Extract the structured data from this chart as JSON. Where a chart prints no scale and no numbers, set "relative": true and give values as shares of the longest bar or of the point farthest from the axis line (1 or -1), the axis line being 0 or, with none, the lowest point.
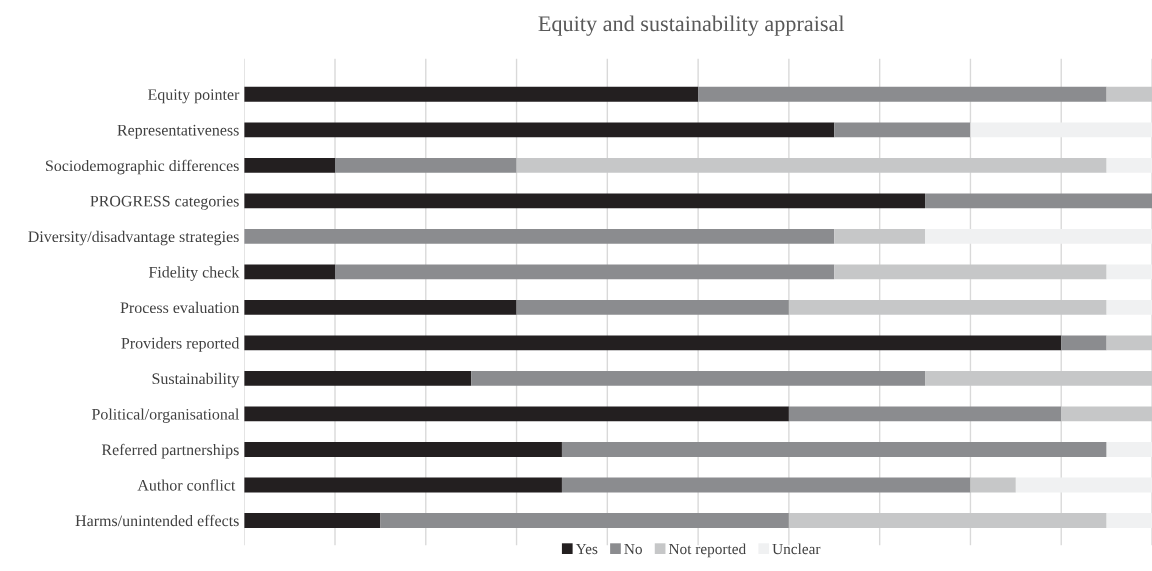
{
  "chart_data": {
    "type": "bar",
    "orientation": "horizontal",
    "stacked": true,
    "relative": true,
    "title": "Equity and sustainability appraisal",
    "categories": [
      "Equity pointer",
      "Representativeness",
      "Sociodemographic differences",
      "PROGRESS categories",
      "Diversity/disadvantage strategies",
      "Fidelity check",
      "Process evaluation",
      "Providers reported",
      "Sustainability",
      "Political/organisational",
      "Referred partnerships",
      "Author conflict ",
      "Harms/unintended effects"
    ],
    "series": [
      {
        "name": "Yes",
        "color": "#231f20",
        "values": [
          0.5,
          0.65,
          0.1,
          0.75,
          0,
          0.1,
          0.3,
          0.9,
          0.25,
          0.6,
          0.35,
          0.35,
          0.15
        ]
      },
      {
        "name": "No",
        "color": "#8b8c8f",
        "values": [
          0.45,
          0.15,
          0.2,
          0.25,
          0.65,
          0.55,
          0.3,
          0.05,
          0.5,
          0.3,
          0.6,
          0.45,
          0.45
        ]
      },
      {
        "name": "Not reported",
        "color": "#c6c7c8",
        "values": [
          0.05,
          0,
          0.65,
          0,
          0.1,
          0.3,
          0.35,
          0.05,
          0.25,
          0.1,
          0,
          0.05,
          0.35
        ]
      },
      {
        "name": "Unclear",
        "color": "#f0f1f2",
        "values": [
          0,
          0.2,
          0.05,
          0,
          0.25,
          0.05,
          0.05,
          0,
          0,
          0,
          0.05,
          0.15,
          0.05
        ]
      }
    ],
    "grid": "x",
    "legend": "bottom"
  }
}
